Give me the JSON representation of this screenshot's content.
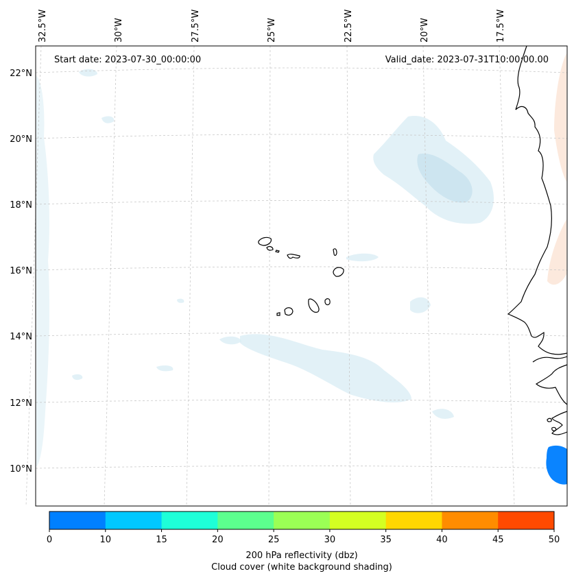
{
  "header": {
    "start_date": "Start date: 2023-07-30_00:00:00",
    "valid_date": "Valid_date: 2023-07-31T10:00:00.00"
  },
  "lon_labels": [
    "32.5°W",
    "30°W",
    "27.5°W",
    "25°W",
    "22.5°W",
    "20°W",
    "17.5°W"
  ],
  "lat_labels": [
    "22°N",
    "20°N",
    "18°N",
    "16°N",
    "14°N",
    "12°N",
    "10°N"
  ],
  "colorbar": {
    "ticks": [
      "0",
      "10",
      "15",
      "20",
      "25",
      "30",
      "35",
      "40",
      "45",
      "50"
    ],
    "colors": [
      "#0080ff",
      "#00c8ff",
      "#1effd8",
      "#5cff8e",
      "#9bff55",
      "#d4ff22",
      "#ffd700",
      "#ff8c00",
      "#ff4a00"
    ],
    "label_line1": "200 hPa reflectivity (dbz)",
    "label_line2": "Cloud cover (white background shading)"
  },
  "layers": {
    "cloud_color": "#d8ecf4",
    "warm_color": "#fbe4d4",
    "coast_color": "#000000",
    "reflectivity_patch_color": "#0a84ff",
    "grid_color": "#c8c8c8"
  }
}
